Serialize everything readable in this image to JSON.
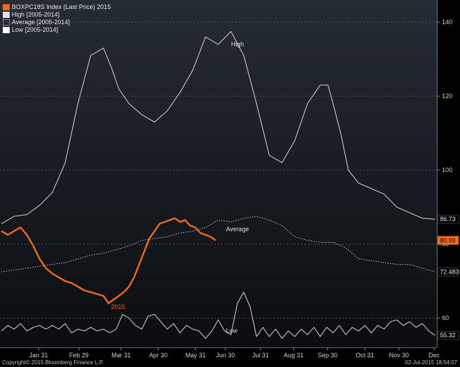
{
  "chart_data": {
    "type": "line",
    "title": "",
    "xlabel": "",
    "ylabel": "",
    "x_ticks": [
      "Jan 31",
      "Feb 29",
      "Mar 31",
      "Apr 30",
      "May 31",
      "Jun 30",
      "Jul 31",
      "Aug 31",
      "Sep 30",
      "Oct 31",
      "Nov 30",
      "Dec"
    ],
    "y_ticks": [
      60,
      80,
      100,
      120,
      140
    ],
    "ylim": [
      52,
      146
    ],
    "grid": "horizontal dotted",
    "legend_position": "top-left",
    "series": [
      {
        "name": "BOXPC18S Index (Last Price) 2015",
        "color": "#f26b1d",
        "style": "solid-thick",
        "points": [
          [
            0.0,
            83.5
          ],
          [
            0.25,
            82.5
          ],
          [
            0.5,
            83.5
          ],
          [
            0.75,
            84.5
          ],
          [
            1.0,
            82.5
          ],
          [
            1.25,
            79.5
          ],
          [
            1.5,
            76.0
          ],
          [
            1.75,
            73.5
          ],
          [
            2.0,
            72.0
          ],
          [
            2.25,
            71.0
          ],
          [
            2.5,
            70.0
          ],
          [
            2.75,
            69.5
          ],
          [
            3.0,
            68.5
          ],
          [
            3.25,
            67.5
          ],
          [
            3.5,
            67.0
          ],
          [
            3.75,
            66.5
          ],
          [
            4.0,
            66.0
          ],
          [
            4.2,
            64.0
          ],
          [
            4.4,
            65.0
          ],
          [
            4.6,
            66.0
          ],
          [
            4.8,
            67.0
          ],
          [
            5.0,
            68.5
          ],
          [
            5.2,
            71.0
          ],
          [
            5.4,
            74.5
          ],
          [
            5.6,
            78.0
          ],
          [
            5.8,
            81.5
          ],
          [
            6.0,
            83.5
          ],
          [
            6.2,
            85.5
          ],
          [
            6.4,
            86.0
          ],
          [
            6.6,
            86.5
          ],
          [
            6.8,
            87.0
          ],
          [
            7.0,
            86.0
          ],
          [
            7.2,
            86.5
          ],
          [
            7.4,
            85.0
          ],
          [
            7.6,
            84.5
          ],
          [
            7.8,
            83.0
          ],
          [
            8.0,
            82.5
          ],
          [
            8.2,
            82.0
          ],
          [
            8.4,
            81.0
          ]
        ]
      },
      {
        "name": "High [2005-2014]",
        "color": "#c8c8c8",
        "style": "solid",
        "label": "High",
        "points": [
          [
            0.0,
            85.5
          ],
          [
            0.5,
            87.5
          ],
          [
            1.0,
            88.0
          ],
          [
            1.5,
            90.5
          ],
          [
            2.0,
            94.0
          ],
          [
            2.5,
            102.0
          ],
          [
            3.0,
            118.0
          ],
          [
            3.5,
            131.0
          ],
          [
            4.0,
            133.0
          ],
          [
            4.3,
            128.0
          ],
          [
            4.6,
            122.0
          ],
          [
            5.0,
            118.0
          ],
          [
            5.5,
            115.0
          ],
          [
            6.0,
            113.0
          ],
          [
            6.5,
            116.0
          ],
          [
            7.0,
            121.0
          ],
          [
            7.5,
            127.0
          ],
          [
            8.0,
            136.0
          ],
          [
            8.5,
            134.0
          ],
          [
            9.0,
            137.5
          ],
          [
            9.5,
            131.0
          ],
          [
            10.0,
            118.0
          ],
          [
            10.5,
            104.0
          ],
          [
            11.0,
            102.0
          ],
          [
            11.5,
            108.0
          ],
          [
            12.0,
            118.0
          ],
          [
            12.5,
            123.0
          ],
          [
            12.8,
            123.0
          ],
          [
            13.0,
            118.0
          ],
          [
            13.3,
            110.0
          ],
          [
            13.6,
            100.0
          ],
          [
            14.0,
            96.5
          ],
          [
            14.5,
            95.0
          ],
          [
            15.0,
            93.5
          ],
          [
            15.5,
            90.0
          ],
          [
            16.0,
            88.5
          ],
          [
            16.5,
            87.0
          ],
          [
            17.0,
            86.73
          ]
        ]
      },
      {
        "name": "Average [2005-2014]",
        "color": "#c8c8c8",
        "style": "dotted",
        "label": "Average",
        "points": [
          [
            0.0,
            72.5
          ],
          [
            0.5,
            73.0
          ],
          [
            1.0,
            73.5
          ],
          [
            1.5,
            74.0
          ],
          [
            2.0,
            74.5
          ],
          [
            2.5,
            75.0
          ],
          [
            3.0,
            76.0
          ],
          [
            3.5,
            77.0
          ],
          [
            4.0,
            77.5
          ],
          [
            4.5,
            78.5
          ],
          [
            5.0,
            79.5
          ],
          [
            5.5,
            81.0
          ],
          [
            6.0,
            81.5
          ],
          [
            6.5,
            82.0
          ],
          [
            7.0,
            83.0
          ],
          [
            7.5,
            83.5
          ],
          [
            8.0,
            84.5
          ],
          [
            8.5,
            86.5
          ],
          [
            9.0,
            86.0
          ],
          [
            9.5,
            87.0
          ],
          [
            10.0,
            87.5
          ],
          [
            10.5,
            86.5
          ],
          [
            11.0,
            85.0
          ],
          [
            11.5,
            82.0
          ],
          [
            12.0,
            81.0
          ],
          [
            12.5,
            80.5
          ],
          [
            13.0,
            80.5
          ],
          [
            13.5,
            79.0
          ],
          [
            14.0,
            76.0
          ],
          [
            14.5,
            75.5
          ],
          [
            15.0,
            75.0
          ],
          [
            15.5,
            74.5
          ],
          [
            16.0,
            74.5
          ],
          [
            16.5,
            73.5
          ],
          [
            17.0,
            72.483
          ]
        ]
      },
      {
        "name": "Low [2005-2014]",
        "color": "#c8c8c8",
        "style": "solid",
        "label": "Low",
        "points": [
          [
            0.0,
            56.5
          ],
          [
            0.25,
            58.0
          ],
          [
            0.5,
            57.0
          ],
          [
            0.75,
            58.5
          ],
          [
            1.0,
            56.5
          ],
          [
            1.25,
            57.5
          ],
          [
            1.5,
            58.0
          ],
          [
            1.75,
            57.0
          ],
          [
            2.0,
            58.0
          ],
          [
            2.25,
            57.0
          ],
          [
            2.5,
            58.5
          ],
          [
            2.75,
            56.0
          ],
          [
            3.0,
            57.0
          ],
          [
            3.25,
            56.5
          ],
          [
            3.5,
            57.5
          ],
          [
            3.75,
            56.5
          ],
          [
            4.0,
            57.0
          ],
          [
            4.25,
            56.0
          ],
          [
            4.5,
            57.0
          ],
          [
            4.75,
            61.0
          ],
          [
            5.0,
            60.0
          ],
          [
            5.25,
            58.0
          ],
          [
            5.5,
            57.0
          ],
          [
            5.75,
            60.5
          ],
          [
            6.0,
            61.0
          ],
          [
            6.25,
            59.0
          ],
          [
            6.5,
            57.0
          ],
          [
            6.75,
            58.5
          ],
          [
            7.0,
            56.0
          ],
          [
            7.25,
            58.0
          ],
          [
            7.5,
            57.0
          ],
          [
            7.75,
            56.5
          ],
          [
            8.0,
            54.5
          ],
          [
            8.25,
            56.5
          ],
          [
            8.5,
            59.5
          ],
          [
            8.75,
            56.5
          ],
          [
            9.0,
            55.5
          ],
          [
            9.25,
            64.0
          ],
          [
            9.5,
            67.0
          ],
          [
            9.75,
            63.0
          ],
          [
            10.0,
            55.0
          ],
          [
            10.25,
            57.5
          ],
          [
            10.5,
            55.0
          ],
          [
            10.75,
            57.0
          ],
          [
            11.0,
            54.5
          ],
          [
            11.25,
            56.5
          ],
          [
            11.5,
            55.0
          ],
          [
            11.75,
            57.0
          ],
          [
            12.0,
            55.5
          ],
          [
            12.25,
            57.5
          ],
          [
            12.5,
            55.0
          ],
          [
            12.75,
            57.5
          ],
          [
            13.0,
            56.0
          ],
          [
            13.25,
            58.0
          ],
          [
            13.5,
            55.5
          ],
          [
            13.75,
            57.5
          ],
          [
            14.0,
            56.5
          ],
          [
            14.25,
            58.0
          ],
          [
            14.5,
            56.0
          ],
          [
            14.75,
            58.0
          ],
          [
            15.0,
            57.0
          ],
          [
            15.25,
            59.0
          ],
          [
            15.5,
            59.5
          ],
          [
            15.75,
            58.0
          ],
          [
            16.0,
            59.0
          ],
          [
            16.25,
            57.5
          ],
          [
            16.5,
            58.5
          ],
          [
            16.75,
            56.5
          ],
          [
            17.0,
            55.32
          ]
        ]
      }
    ],
    "last_values": [
      {
        "value": "86.73",
        "fill": "#000000",
        "text": "#e6e6e6"
      },
      {
        "value": "80.99",
        "fill": "#f26b1d",
        "text": "#000000"
      },
      {
        "value": "72.483",
        "fill": "#000000",
        "text": "#e6e6e6"
      },
      {
        "value": "55.32",
        "fill": "#000000",
        "text": "#e6e6e6"
      }
    ],
    "annotations": [
      {
        "text": "High",
        "x": 9.0,
        "y": 133.5
      },
      {
        "text": "Average",
        "x": 8.8,
        "y": 83.5
      },
      {
        "text": "2015",
        "x": 4.3,
        "y": 62.5
      },
      {
        "text": "Low",
        "x": 8.8,
        "y": 56.0
      }
    ]
  },
  "legend": [
    {
      "label": "BOXPC18S Index (Last Price) 2015",
      "swatch": "orange"
    },
    {
      "label": "High [2005-2014]",
      "swatch": "solid"
    },
    {
      "label": "Average [2005-2014]",
      "swatch": "dotted"
    },
    {
      "label": "Low [2005-2014]",
      "swatch": "solid"
    }
  ],
  "footer": {
    "copyright": "Copyright© 2015 Bloomberg Finance L.P.",
    "timestamp": "02-Jul-2015 18:54:07"
  },
  "colors": {
    "background": "#000000",
    "plot_top": "#262c34",
    "plot_bottom": "#0b0d10",
    "accent": "#f26b1d",
    "line": "#c8c8c8"
  }
}
